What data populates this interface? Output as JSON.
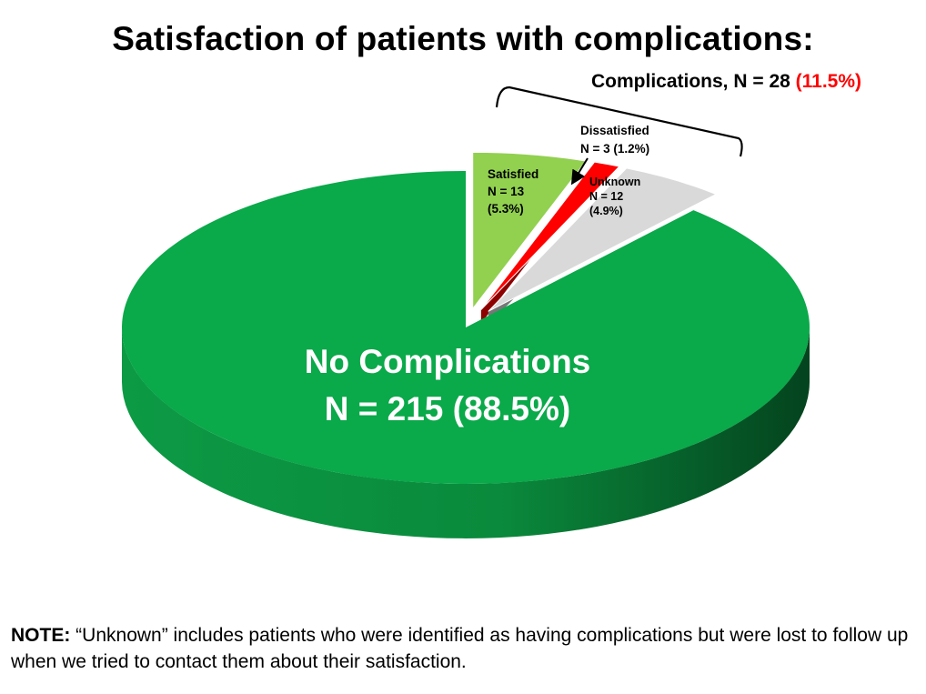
{
  "title": "Satisfaction of patients with complications:",
  "chart_data": {
    "type": "pie",
    "style": "3d-exploded",
    "slices": [
      {
        "category": "No Complications",
        "n": 215,
        "percent": 88.5,
        "label_lines": [
          "No Complications",
          "N = 215 (88.5%)"
        ],
        "color": "#0aa94a"
      },
      {
        "category": "Satisfied",
        "n": 13,
        "percent": 5.3,
        "label_lines": [
          "Satisfied",
          "N = 13",
          "(5.3%)"
        ],
        "color": "#92d050"
      },
      {
        "category": "Dissatisfied",
        "n": 3,
        "percent": 1.2,
        "label_lines": [
          "Dissatisfied",
          "N = 3 (1.2%)"
        ],
        "color": "#ff0000"
      },
      {
        "category": "Unknown",
        "n": 12,
        "percent": 4.9,
        "label_lines": [
          "Unknown",
          "N = 12",
          "(4.9%)"
        ],
        "color": "#d9d9d9"
      }
    ],
    "group_annotation": {
      "text": "Complications, N = 28",
      "highlight": "(11.5%)",
      "highlight_color": "#ff0000"
    }
  },
  "note": {
    "label": "NOTE:",
    "text": "“Unknown” includes patients who were identified as having complications but were lost to follow up when we tried to contact them about their satisfaction."
  }
}
